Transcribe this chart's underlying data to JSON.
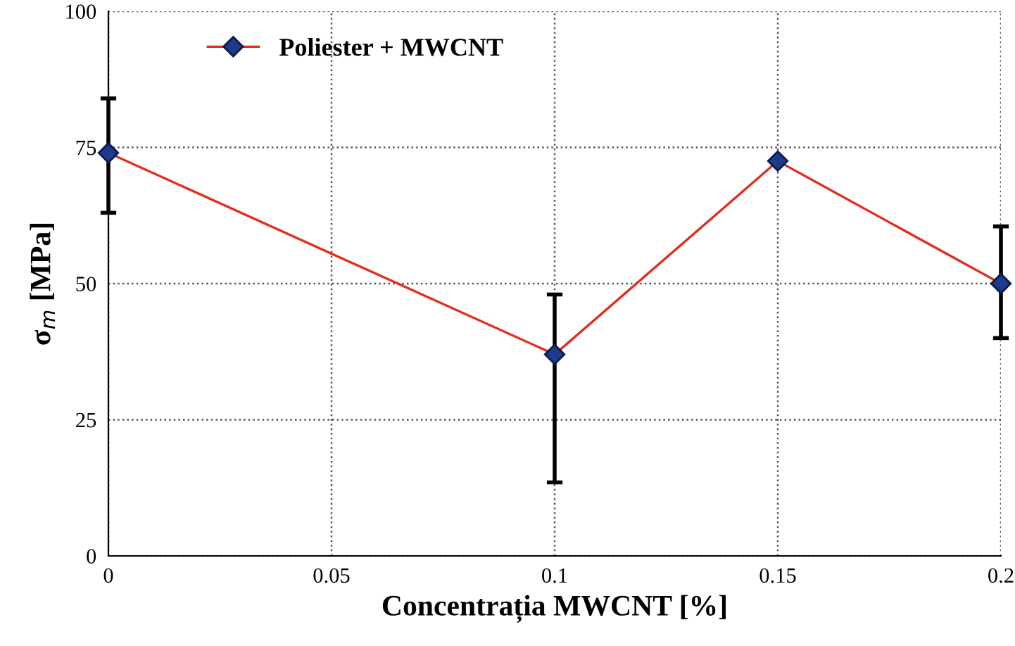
{
  "chart_data": {
    "type": "line",
    "xlabel": "Concentrația MWCNT [%]",
    "ylabel": "σ$_{m}$ [MPa]",
    "series": [
      {
        "name": "Poliester + MWCNT",
        "color": "#e0301e",
        "x": [
          0,
          0.1,
          0.15,
          0.2
        ],
        "values": [
          74,
          37,
          72.5,
          50
        ],
        "errors": [
          [
            63,
            84
          ],
          [
            13.5,
            48
          ],
          null,
          [
            40,
            60.5
          ]
        ]
      }
    ],
    "xlim": [
      0,
      0.2
    ],
    "xticks": [
      0,
      0.05,
      0.1,
      0.15,
      0.2
    ],
    "ylim": [
      0,
      100
    ],
    "yticks": [
      0,
      25,
      50,
      75,
      100
    ],
    "grid": true,
    "legend": "top left",
    "marker": "diamond",
    "line_style": "solid"
  }
}
